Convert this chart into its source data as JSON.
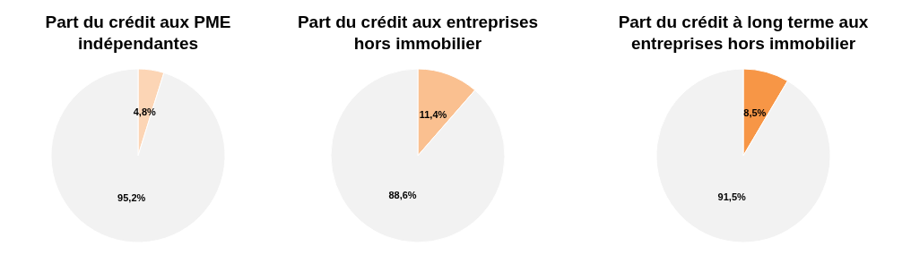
{
  "chart_data": [
    {
      "type": "pie",
      "title": "Part du crédit aux PME indépendantes",
      "categories": [
        null,
        null
      ],
      "values": [
        4.8,
        95.2
      ],
      "colors": [
        "#fcd5b5",
        "#f2f2f2"
      ],
      "value_labels": [
        "4,8%",
        "95,2%"
      ]
    },
    {
      "type": "pie",
      "title": "Part du crédit aux entreprises hors immobilier",
      "categories": [
        null,
        null
      ],
      "values": [
        11.4,
        88.6
      ],
      "colors": [
        "#fac090",
        "#f2f2f2"
      ],
      "value_labels": [
        "11,4%",
        "88,6%"
      ]
    },
    {
      "type": "pie",
      "title": "Part du crédit à long terme aux entreprises hors immobilier",
      "categories": [
        null,
        null
      ],
      "values": [
        8.5,
        91.5
      ],
      "colors": [
        "#f79646",
        "#f2f2f2"
      ],
      "value_labels": [
        "8,5%",
        "91,5%"
      ]
    }
  ]
}
